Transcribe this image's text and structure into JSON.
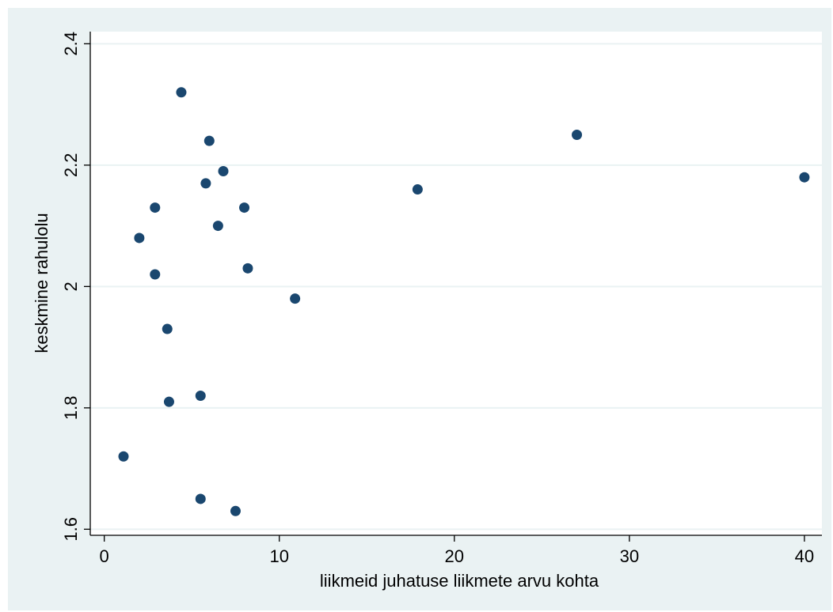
{
  "chart_data": {
    "type": "scatter",
    "title": "",
    "xlabel": "liikmeid juhatuse liikmete arvu kohta",
    "ylabel": "keskmine rahulolu",
    "xlim": [
      -0.8,
      41
    ],
    "ylim": [
      1.59,
      2.42
    ],
    "x_ticks": [
      0,
      10,
      20,
      30,
      40
    ],
    "y_ticks": [
      1.6,
      1.8,
      2,
      2.2,
      2.4
    ],
    "x_tick_labels": [
      "0",
      "10",
      "20",
      "30",
      "40"
    ],
    "y_tick_labels": [
      "1.6",
      "1.8",
      "2",
      "2.2",
      "2.4"
    ],
    "grid": "horizontal",
    "marker_color": "#1a476f",
    "background_color": "#eaf2f3",
    "plot_background_color": "#ffffff",
    "points": [
      {
        "x": 1.1,
        "y": 1.72
      },
      {
        "x": 2.0,
        "y": 2.08
      },
      {
        "x": 2.9,
        "y": 2.13
      },
      {
        "x": 2.9,
        "y": 2.02
      },
      {
        "x": 3.6,
        "y": 1.93
      },
      {
        "x": 3.7,
        "y": 1.81
      },
      {
        "x": 4.4,
        "y": 2.32
      },
      {
        "x": 5.5,
        "y": 1.82
      },
      {
        "x": 5.5,
        "y": 1.65
      },
      {
        "x": 5.8,
        "y": 2.17
      },
      {
        "x": 6.0,
        "y": 2.24
      },
      {
        "x": 6.5,
        "y": 2.1
      },
      {
        "x": 6.8,
        "y": 2.19
      },
      {
        "x": 7.5,
        "y": 1.63
      },
      {
        "x": 8.0,
        "y": 2.13
      },
      {
        "x": 8.2,
        "y": 2.03
      },
      {
        "x": 10.9,
        "y": 1.98
      },
      {
        "x": 17.9,
        "y": 2.16
      },
      {
        "x": 27.0,
        "y": 2.25
      },
      {
        "x": 40.0,
        "y": 2.18
      }
    ]
  }
}
